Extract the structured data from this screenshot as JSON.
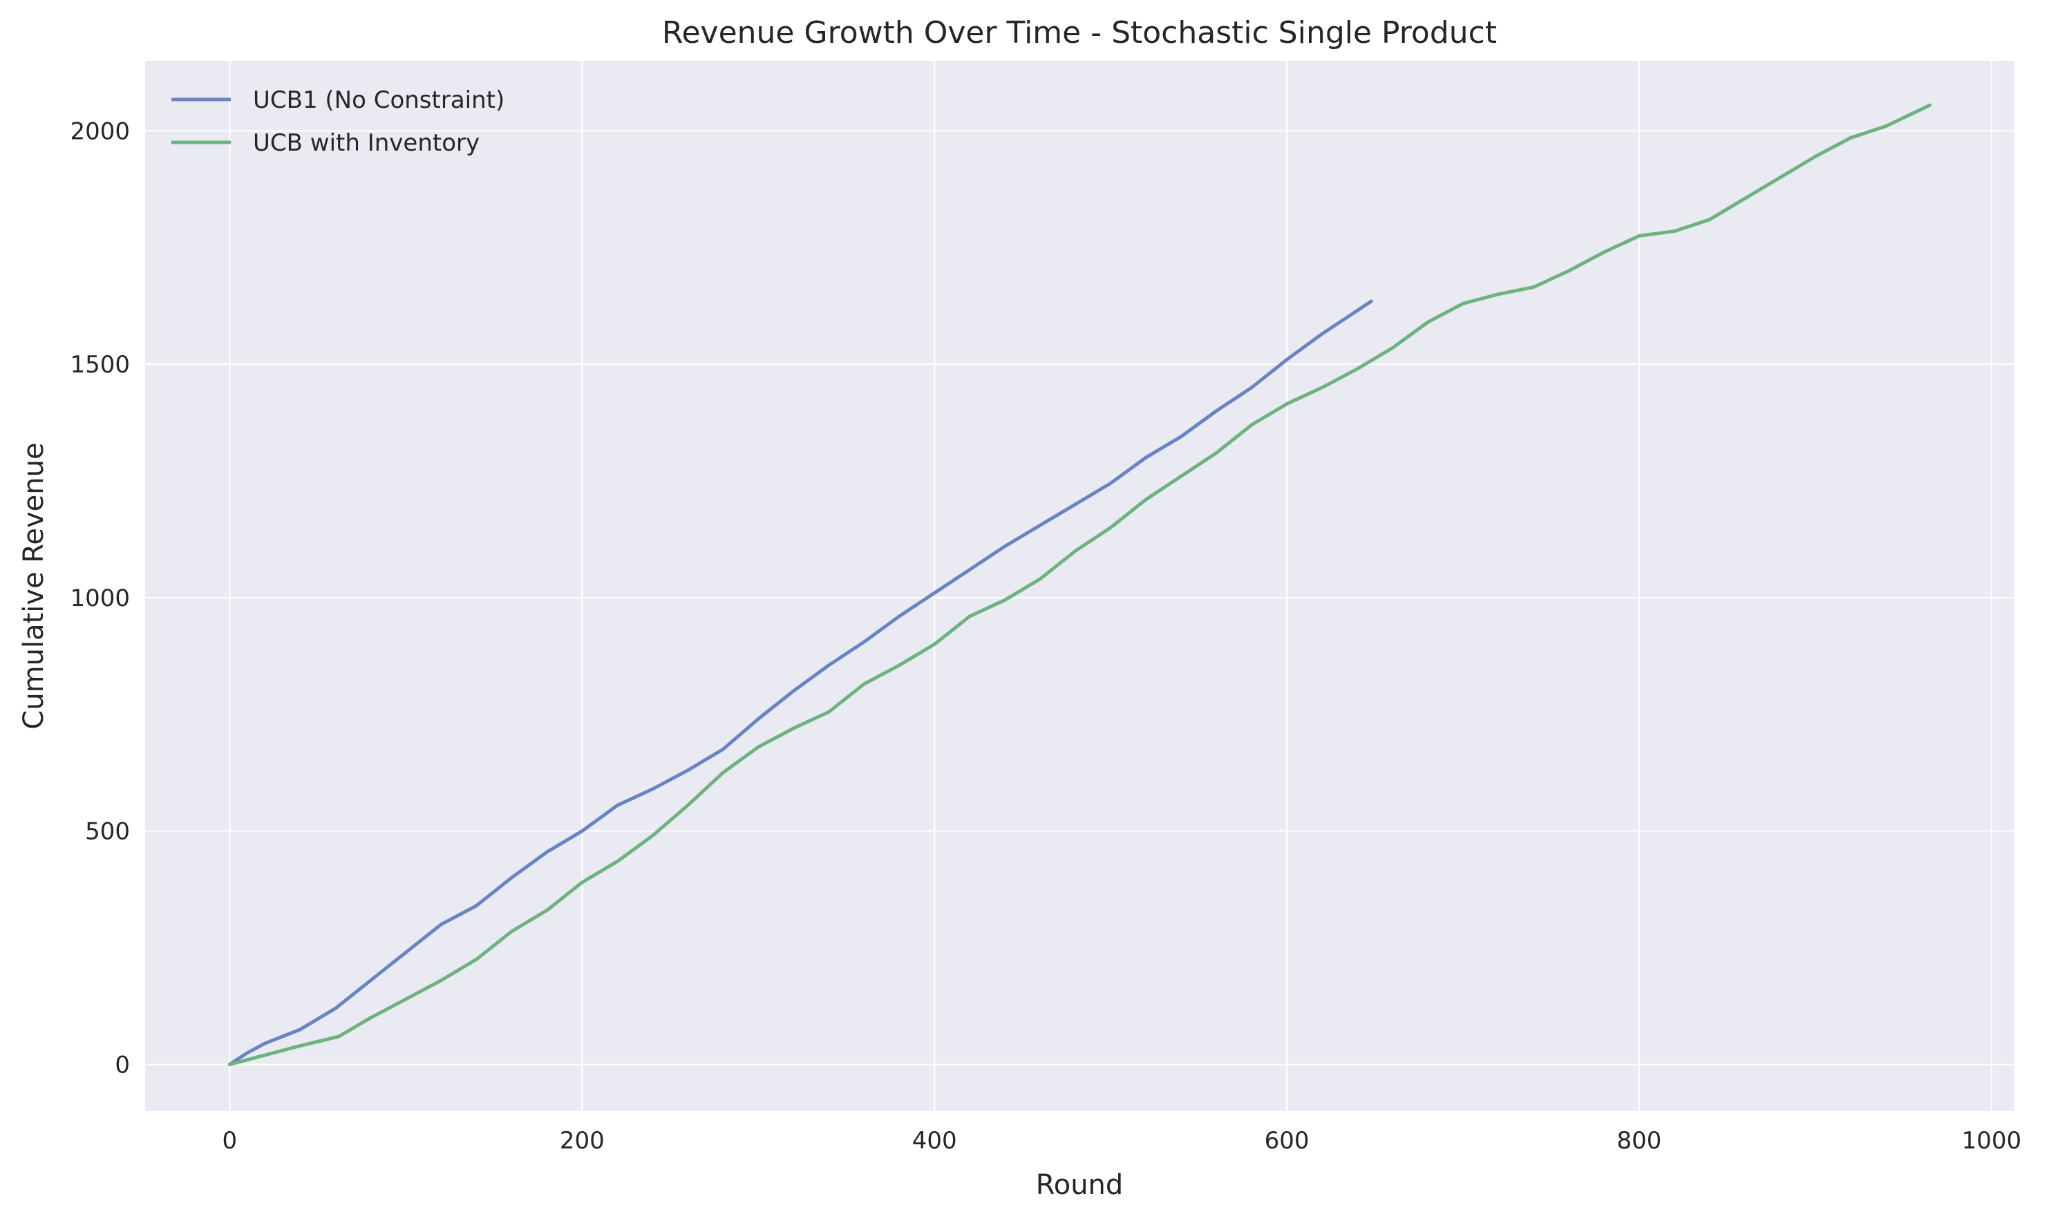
{
  "chart_data": {
    "type": "line",
    "title": "Revenue Growth Over Time - Stochastic Single Product",
    "xlabel": "Round",
    "ylabel": "Cumulative Revenue",
    "xlim": [
      -48,
      1013
    ],
    "ylim": [
      -100,
      2150
    ],
    "x_ticks": [
      0,
      200,
      400,
      600,
      800,
      1000
    ],
    "y_ticks": [
      0,
      500,
      1000,
      1500,
      2000
    ],
    "x_tick_labels": [
      "0",
      "200",
      "400",
      "600",
      "800",
      "1000"
    ],
    "y_tick_labels": [
      "0",
      "500",
      "1000",
      "1500",
      "2000"
    ],
    "grid": true,
    "legend_position": "top-left",
    "series": [
      {
        "name": "UCB1 (No Constraint)",
        "color": "#6a84c2",
        "x": [
          0,
          10,
          20,
          40,
          60,
          80,
          100,
          120,
          140,
          160,
          180,
          200,
          220,
          240,
          260,
          280,
          300,
          320,
          340,
          360,
          380,
          400,
          420,
          440,
          460,
          480,
          500,
          520,
          540,
          560,
          580,
          600,
          620,
          648
        ],
        "y": [
          0,
          25,
          45,
          75,
          120,
          180,
          240,
          300,
          340,
          400,
          455,
          500,
          555,
          590,
          630,
          675,
          740,
          800,
          855,
          905,
          960,
          1010,
          1060,
          1110,
          1155,
          1200,
          1245,
          1300,
          1345,
          1400,
          1450,
          1510,
          1565,
          1635
        ]
      },
      {
        "name": "UCB with Inventory",
        "color": "#6db37f",
        "x": [
          0,
          20,
          40,
          62,
          80,
          100,
          120,
          140,
          160,
          180,
          200,
          220,
          240,
          260,
          280,
          300,
          320,
          340,
          360,
          380,
          400,
          420,
          440,
          460,
          480,
          500,
          520,
          540,
          560,
          580,
          600,
          620,
          640,
          660,
          680,
          700,
          720,
          740,
          760,
          780,
          800,
          820,
          840,
          860,
          880,
          900,
          920,
          940,
          965
        ],
        "y": [
          0,
          20,
          40,
          60,
          100,
          140,
          180,
          225,
          285,
          330,
          390,
          435,
          490,
          555,
          625,
          680,
          720,
          755,
          815,
          855,
          900,
          960,
          995,
          1040,
          1100,
          1150,
          1210,
          1260,
          1310,
          1370,
          1415,
          1450,
          1490,
          1535,
          1590,
          1630,
          1650,
          1665,
          1700,
          1740,
          1775,
          1785,
          1810,
          1855,
          1900,
          1945,
          1985,
          2010,
          2055
        ]
      }
    ]
  }
}
